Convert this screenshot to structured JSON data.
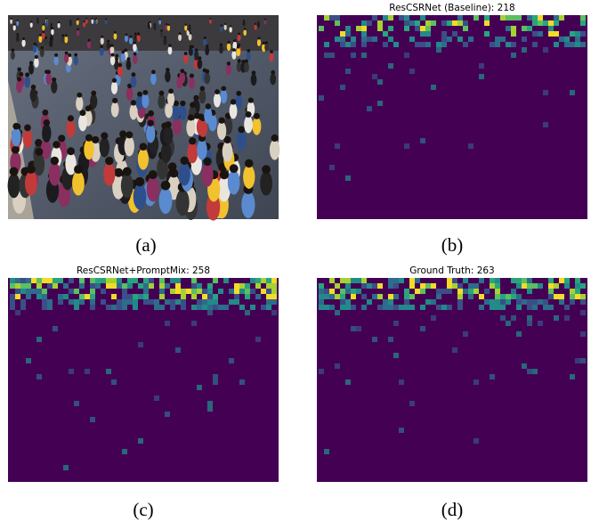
{
  "panels": [
    {
      "label": "(a)"
    },
    {
      "title": "ResCSRNet (Baseline): 218",
      "label": "(b)"
    },
    {
      "title": "ResCSRNet+PromptMix: 258",
      "label": "(c)"
    },
    {
      "title": "Ground Truth: 263",
      "label": "(d)"
    }
  ]
}
